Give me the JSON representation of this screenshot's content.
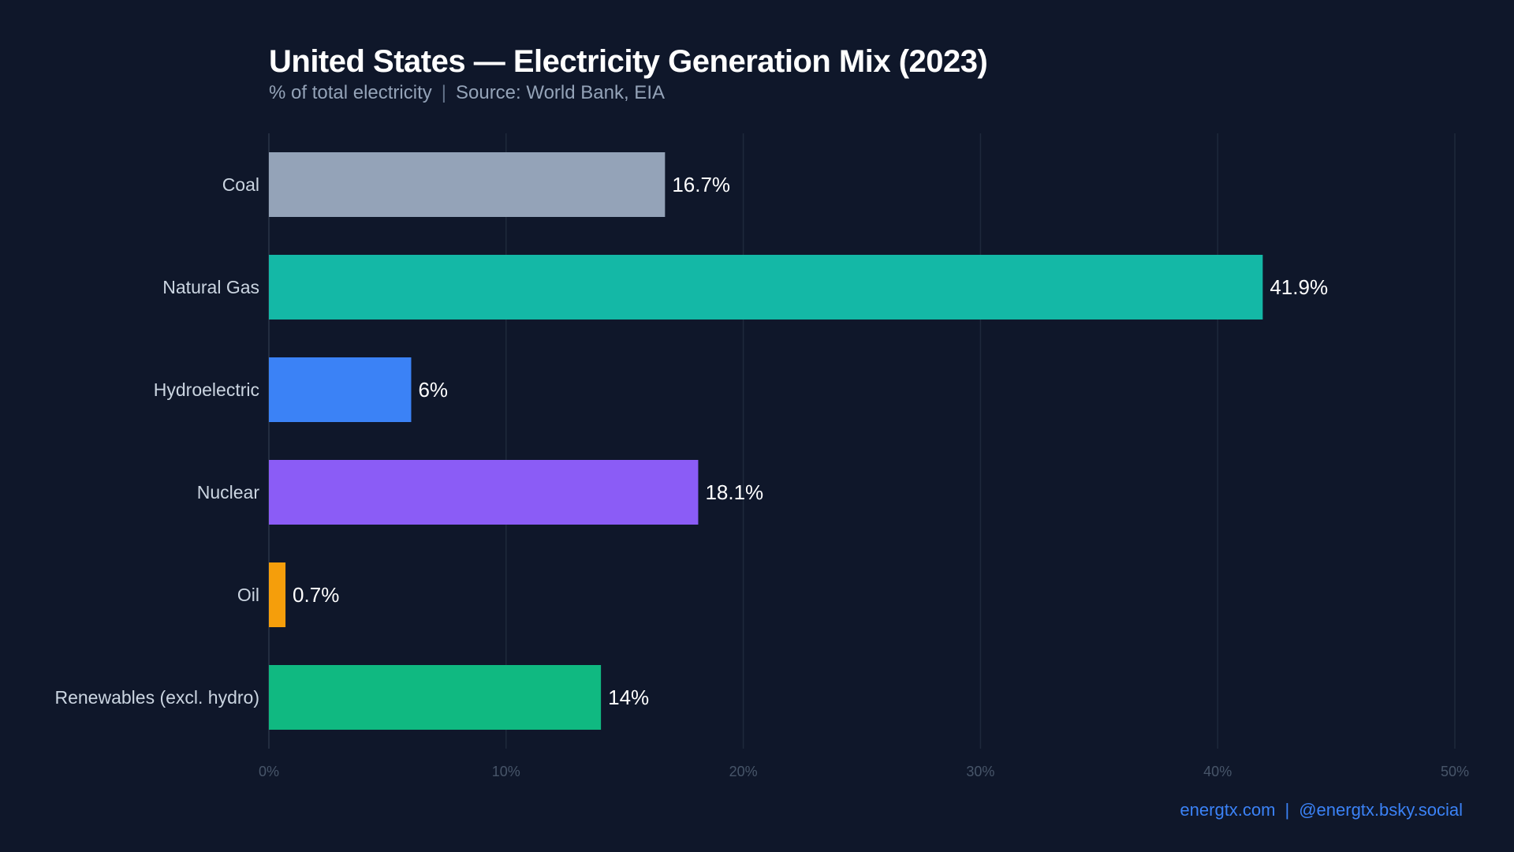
{
  "chart_data": {
    "type": "bar",
    "orientation": "horizontal",
    "title": "United States — Electricity Generation Mix (2023)",
    "subtitle": "% of total electricity",
    "source": "Source: World Bank, EIA",
    "categories": [
      "Coal",
      "Natural Gas",
      "Hydroelectric",
      "Nuclear",
      "Oil",
      "Renewables (excl. hydro)"
    ],
    "values": [
      16.7,
      41.9,
      6,
      18.1,
      0.7,
      14
    ],
    "value_labels": [
      "16.7%",
      "41.9%",
      "6%",
      "18.1%",
      "0.7%",
      "14%"
    ],
    "colors": [
      "#94a3b8",
      "#14b8a6",
      "#3b82f6",
      "#8b5cf6",
      "#f59e0b",
      "#10b981"
    ],
    "xlim": [
      0,
      50
    ],
    "xticks": [
      0,
      10,
      20,
      30,
      40,
      50
    ],
    "xtick_labels": [
      "0%",
      "10%",
      "20%",
      "30%",
      "40%",
      "50%"
    ],
    "grid": "vertical",
    "background": "#0f172a"
  },
  "footer": {
    "website": "energtx.com",
    "social": "@energtx.bsky.social",
    "color": "#3b82f6"
  }
}
